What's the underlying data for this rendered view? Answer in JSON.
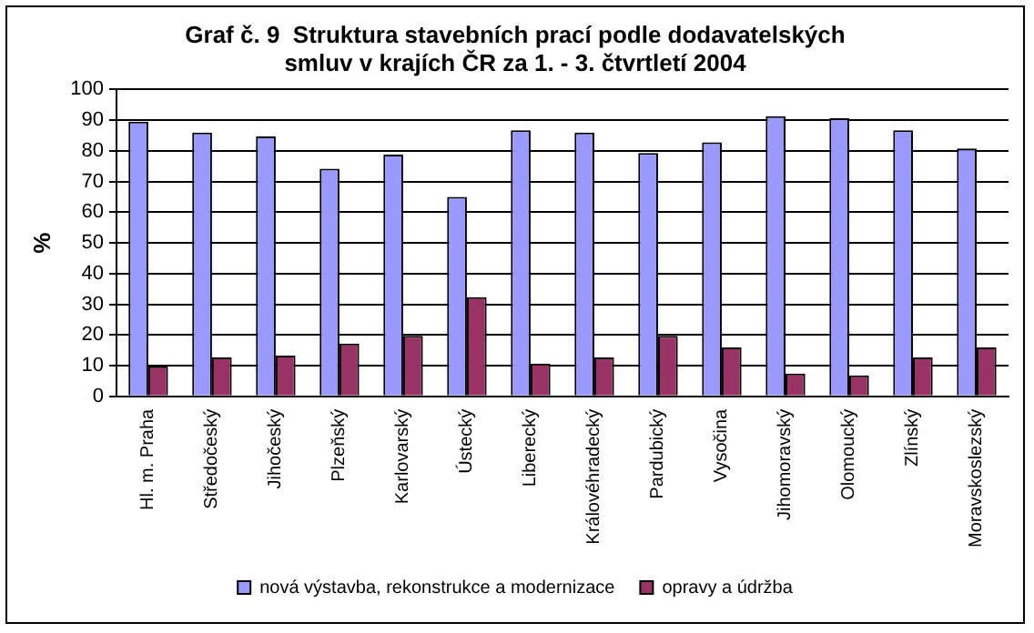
{
  "chart_data": {
    "type": "bar",
    "title": [
      "Graf č. 9  Struktura stavebních prací podle dodavatelských",
      "smluv v krajích ČR za 1. - 3. čtvrtletí 2004"
    ],
    "ylabel": "%",
    "categories": [
      "Hl. m. Praha",
      "Středočeský",
      "Jihočeský",
      "Plzeňský",
      "Karlovarský",
      "Ústecký",
      "Liberecký",
      "Královéhradecký",
      "Pardubický",
      "Vysočina",
      "Jihomoravský",
      "Olomoucký",
      "Zlínský",
      "Moravskoslezský"
    ],
    "series": [
      {
        "name": "nová výstavba, rekonstrukce a modernizace",
        "color": "#9999ff",
        "values": [
          89.5,
          86,
          84.7,
          74.2,
          78.8,
          65,
          86.7,
          86,
          79.3,
          82.8,
          91.3,
          90.6,
          86.7,
          80.8
        ]
      },
      {
        "name": "opravy a údržba",
        "color": "#993366",
        "values": [
          9.8,
          12.7,
          13.3,
          17.2,
          19.7,
          32.3,
          10.7,
          12.7,
          19.7,
          15.9,
          7.4,
          6.8,
          12.7,
          15.9
        ]
      }
    ],
    "ylim": [
      0,
      100
    ],
    "yticks": [
      0,
      10,
      20,
      30,
      40,
      50,
      60,
      70,
      80,
      90,
      100
    ],
    "grid": "y",
    "legend": "bottom"
  }
}
